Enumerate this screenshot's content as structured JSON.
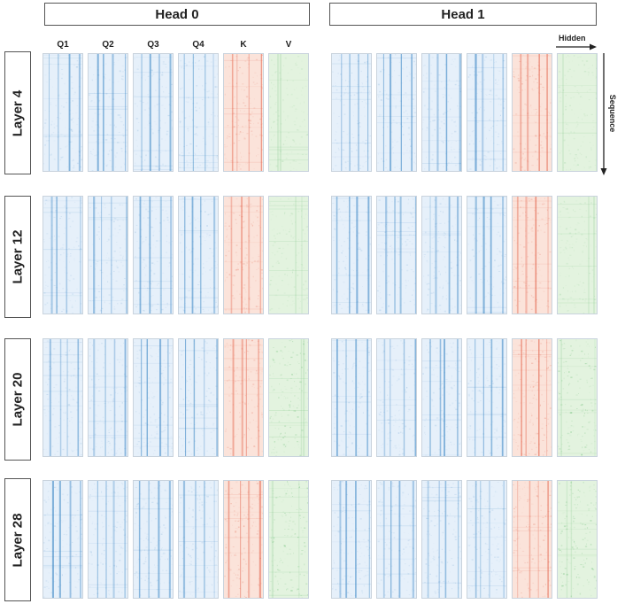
{
  "heads": [
    {
      "label": "Head 0"
    },
    {
      "label": "Head 1"
    }
  ],
  "columns": [
    "Q1",
    "Q2",
    "Q3",
    "Q4",
    "K",
    "V"
  ],
  "layers": [
    "Layer 4",
    "Layer 12",
    "Layer 20",
    "Layer 28"
  ],
  "axes": {
    "hidden": "Hidden",
    "sequence": "Sequence"
  },
  "colors": {
    "query": "#2f7fc1",
    "key": "#e0533a",
    "value": "#3aa84a"
  }
}
